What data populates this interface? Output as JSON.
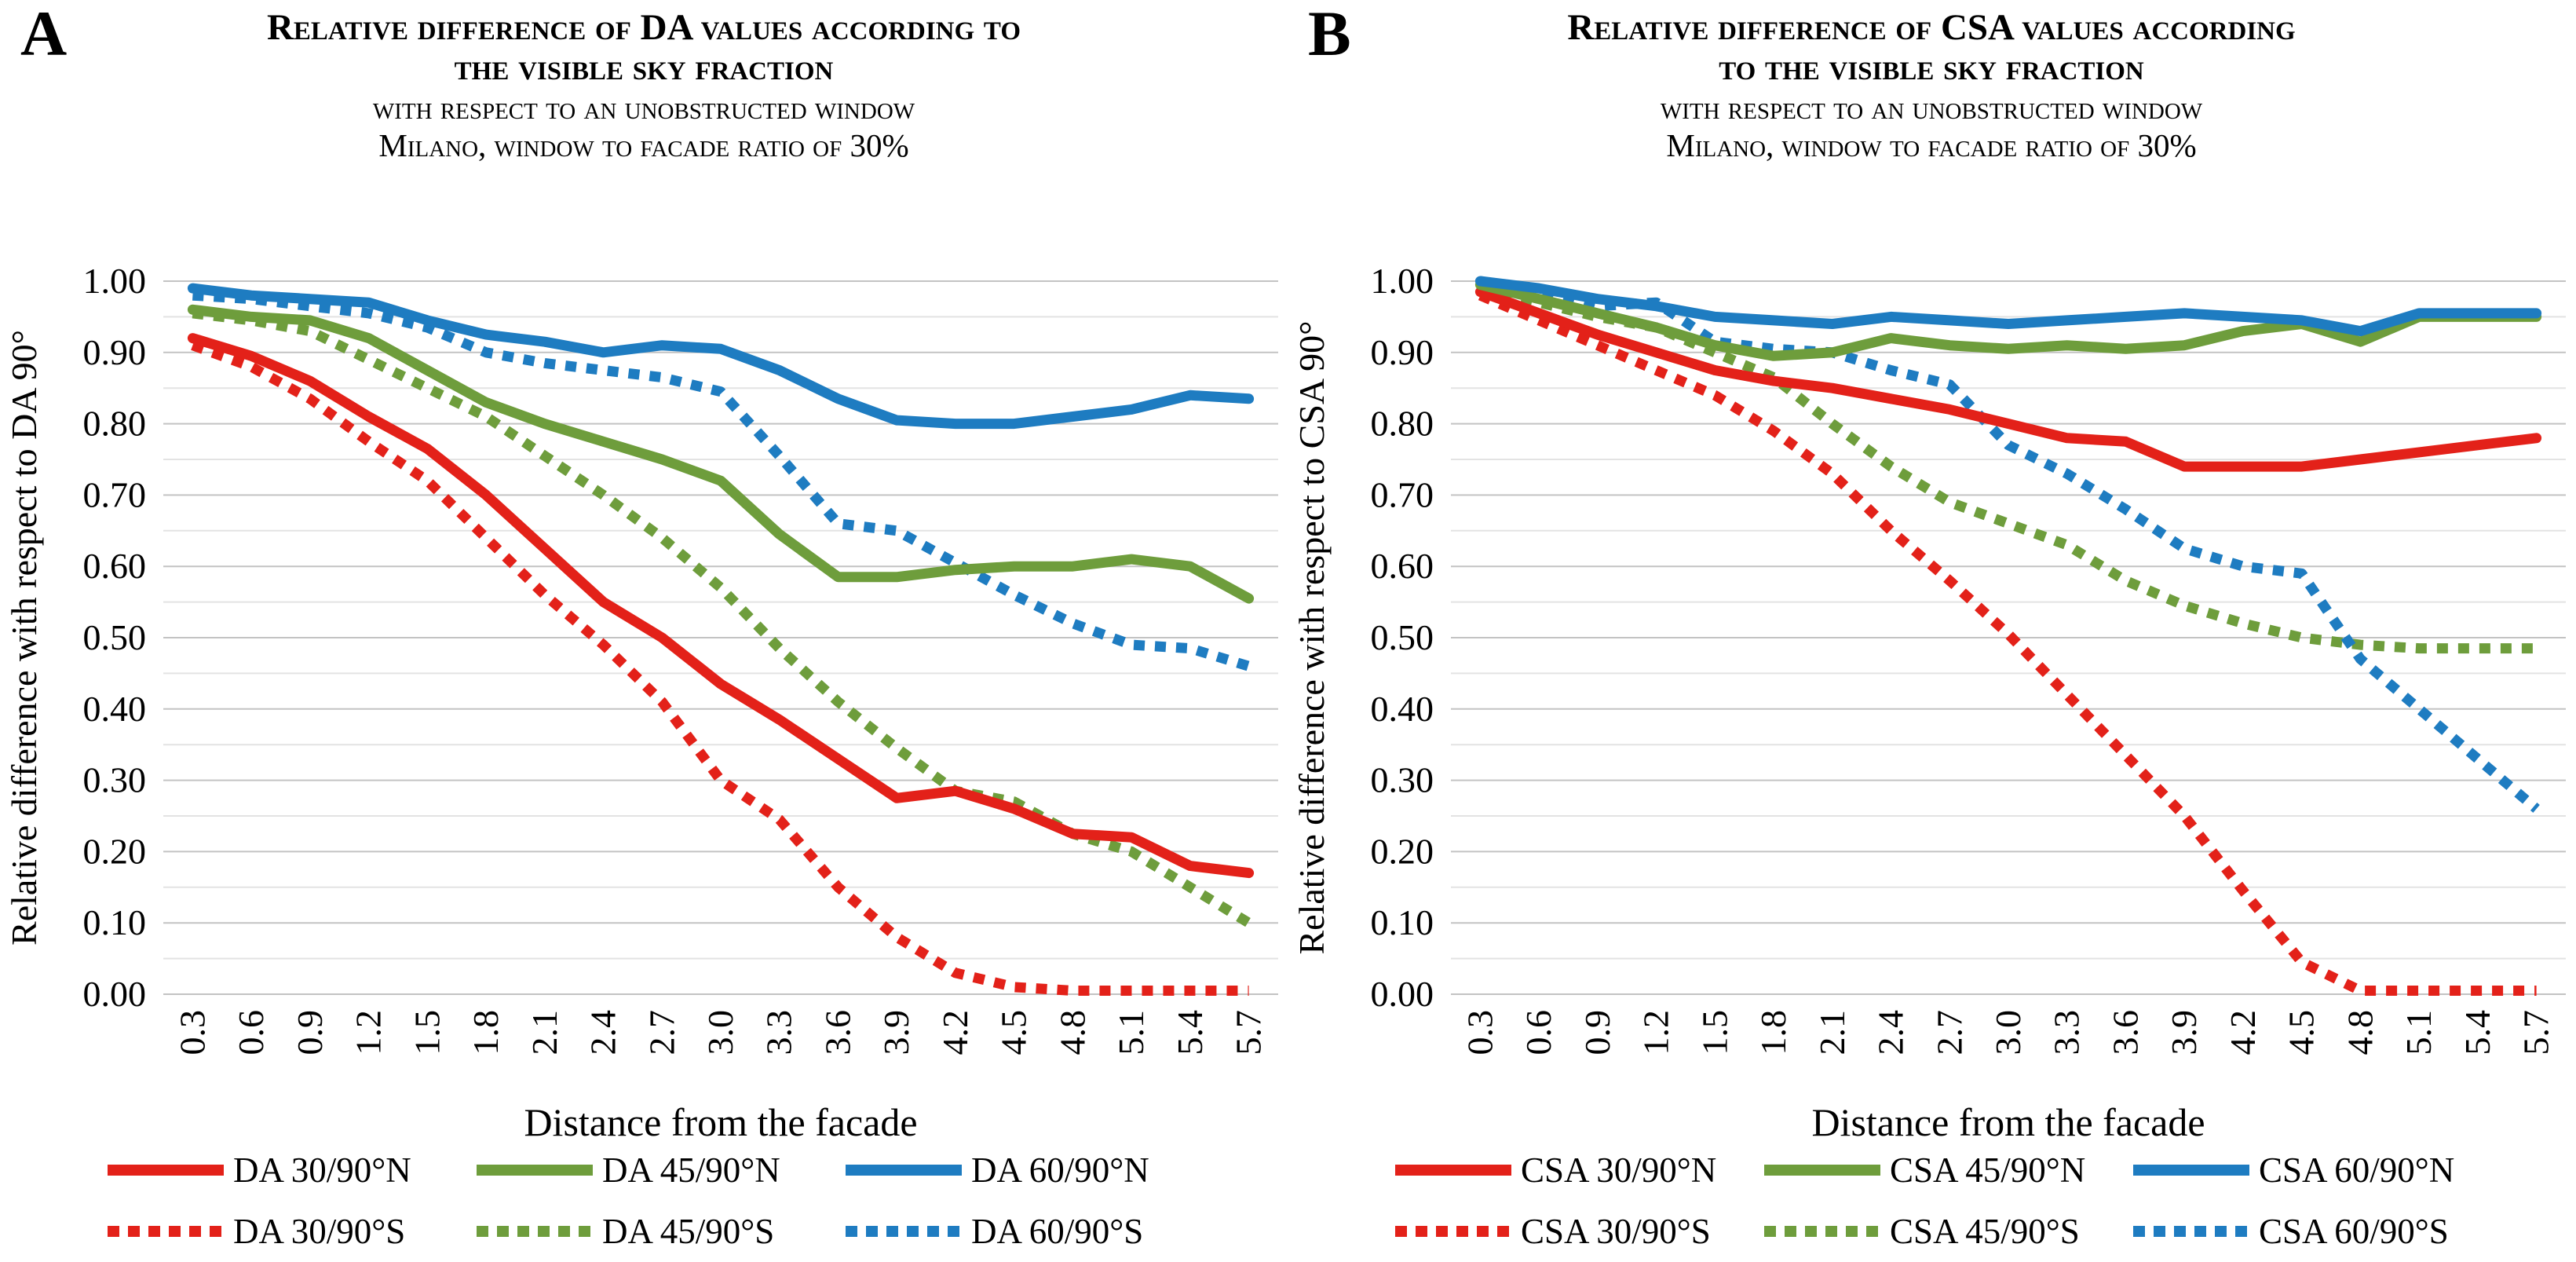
{
  "panels": [
    {
      "letter": "A",
      "title_line1": "Relative difference of DA values according to",
      "title_line2": "the visible sky fraction",
      "subtitle_line1": "with respect to an unobstructed window",
      "subtitle_line2": "Milano, window to facade ratio of 30%",
      "y_axis_label": "Relative difference with respect to DA 90°",
      "x_axis_label": "Distance from the facade"
    },
    {
      "letter": "B",
      "title_line1": "Relative difference of CSA values according",
      "title_line2": "to the visible sky fraction",
      "subtitle_line1": "with respect to an unobstructed window",
      "subtitle_line2": "Milano, window to facade ratio of 30%",
      "y_axis_label": "Relative difference with respect to CSA 90°",
      "x_axis_label": "Distance from the facade"
    }
  ],
  "colors": {
    "red": "#e32119",
    "green": "#6e9d3c",
    "blue": "#1e7cc1",
    "grid_major": "#c3c3c3",
    "grid_minor": "#e3e3e3"
  },
  "chart_data": [
    {
      "type": "line",
      "title": "Relative difference of DA values according to the visible sky fraction",
      "xlabel": "Distance from the facade",
      "ylabel": "Relative difference with respect to DA 90°",
      "x": [
        0.3,
        0.6,
        0.9,
        1.2,
        1.5,
        1.8,
        2.1,
        2.4,
        2.7,
        3.0,
        3.3,
        3.6,
        3.9,
        4.2,
        4.5,
        4.8,
        5.1,
        5.4,
        5.7
      ],
      "ylim": [
        0.0,
        1.0
      ],
      "ytick_step": 0.1,
      "grid_step": 0.05,
      "legend_position": "bottom",
      "series": [
        {
          "name": "DA 30/90°N",
          "color": "red",
          "dash": false,
          "values": [
            0.92,
            0.895,
            0.86,
            0.81,
            0.765,
            0.7,
            0.625,
            0.55,
            0.5,
            0.435,
            0.385,
            0.33,
            0.275,
            0.285,
            0.26,
            0.225,
            0.22,
            0.18,
            0.17
          ]
        },
        {
          "name": "DA 45/90°N",
          "color": "green",
          "dash": false,
          "values": [
            0.96,
            0.95,
            0.945,
            0.92,
            0.875,
            0.83,
            0.8,
            0.775,
            0.75,
            0.72,
            0.645,
            0.585,
            0.585,
            0.595,
            0.6,
            0.6,
            0.61,
            0.6,
            0.555
          ]
        },
        {
          "name": "DA 60/90°N",
          "color": "blue",
          "dash": false,
          "values": [
            0.99,
            0.98,
            0.975,
            0.97,
            0.945,
            0.925,
            0.915,
            0.9,
            0.91,
            0.905,
            0.875,
            0.835,
            0.805,
            0.8,
            0.8,
            0.81,
            0.82,
            0.84,
            0.835
          ]
        },
        {
          "name": "DA 30/90°S",
          "color": "red",
          "dash": true,
          "values": [
            0.91,
            0.88,
            0.835,
            0.775,
            0.72,
            0.64,
            0.56,
            0.49,
            0.41,
            0.3,
            0.245,
            0.15,
            0.08,
            0.03,
            0.01,
            0.005,
            0.005,
            0.005,
            0.005
          ]
        },
        {
          "name": "DA 45/90°S",
          "color": "green",
          "dash": true,
          "values": [
            0.955,
            0.945,
            0.93,
            0.89,
            0.85,
            0.81,
            0.755,
            0.7,
            0.64,
            0.57,
            0.485,
            0.41,
            0.345,
            0.285,
            0.27,
            0.225,
            0.2,
            0.15,
            0.1
          ]
        },
        {
          "name": "DA 60/90°S",
          "color": "blue",
          "dash": true,
          "values": [
            0.98,
            0.975,
            0.965,
            0.955,
            0.935,
            0.9,
            0.885,
            0.875,
            0.865,
            0.845,
            0.755,
            0.66,
            0.65,
            0.605,
            0.56,
            0.52,
            0.49,
            0.485,
            0.46
          ]
        }
      ]
    },
    {
      "type": "line",
      "title": "Relative difference of CSA values according to the visible sky fraction",
      "xlabel": "Distance from the facade",
      "ylabel": "Relative difference with respect to CSA 90°",
      "x": [
        0.3,
        0.6,
        0.9,
        1.2,
        1.5,
        1.8,
        2.1,
        2.4,
        2.7,
        3.0,
        3.3,
        3.6,
        3.9,
        4.2,
        4.5,
        4.8,
        5.1,
        5.4,
        5.7
      ],
      "ylim": [
        0.0,
        1.0
      ],
      "ytick_step": 0.1,
      "grid_step": 0.05,
      "legend_position": "bottom",
      "series": [
        {
          "name": "CSA 30/90°N",
          "color": "red",
          "dash": false,
          "values": [
            0.985,
            0.955,
            0.925,
            0.9,
            0.875,
            0.86,
            0.85,
            0.835,
            0.82,
            0.8,
            0.78,
            0.775,
            0.74,
            0.74,
            0.74,
            0.75,
            0.76,
            0.77,
            0.78
          ]
        },
        {
          "name": "CSA 45/90°N",
          "color": "green",
          "dash": false,
          "values": [
            0.995,
            0.975,
            0.955,
            0.935,
            0.91,
            0.895,
            0.9,
            0.92,
            0.91,
            0.905,
            0.91,
            0.905,
            0.91,
            0.93,
            0.94,
            0.915,
            0.95,
            0.95,
            0.95
          ]
        },
        {
          "name": "CSA 60/90°N",
          "color": "blue",
          "dash": false,
          "values": [
            1.0,
            0.99,
            0.975,
            0.965,
            0.95,
            0.945,
            0.94,
            0.95,
            0.945,
            0.94,
            0.945,
            0.95,
            0.955,
            0.95,
            0.945,
            0.93,
            0.955,
            0.955,
            0.955
          ]
        },
        {
          "name": "CSA 30/90°S",
          "color": "red",
          "dash": true,
          "values": [
            0.98,
            0.945,
            0.91,
            0.875,
            0.84,
            0.79,
            0.73,
            0.65,
            0.58,
            0.505,
            0.42,
            0.335,
            0.25,
            0.145,
            0.045,
            0.005,
            0.005,
            0.005,
            0.005
          ]
        },
        {
          "name": "CSA 45/90°S",
          "color": "green",
          "dash": true,
          "values": [
            0.99,
            0.97,
            0.95,
            0.935,
            0.9,
            0.865,
            0.8,
            0.74,
            0.69,
            0.66,
            0.63,
            0.58,
            0.545,
            0.52,
            0.5,
            0.49,
            0.485,
            0.485,
            0.485
          ]
        },
        {
          "name": "CSA 60/90°S",
          "color": "blue",
          "dash": true,
          "values": [
            1.0,
            0.985,
            0.965,
            0.97,
            0.915,
            0.905,
            0.9,
            0.875,
            0.855,
            0.77,
            0.73,
            0.68,
            0.625,
            0.6,
            0.59,
            0.47,
            0.4,
            0.33,
            0.26
          ]
        }
      ]
    }
  ]
}
